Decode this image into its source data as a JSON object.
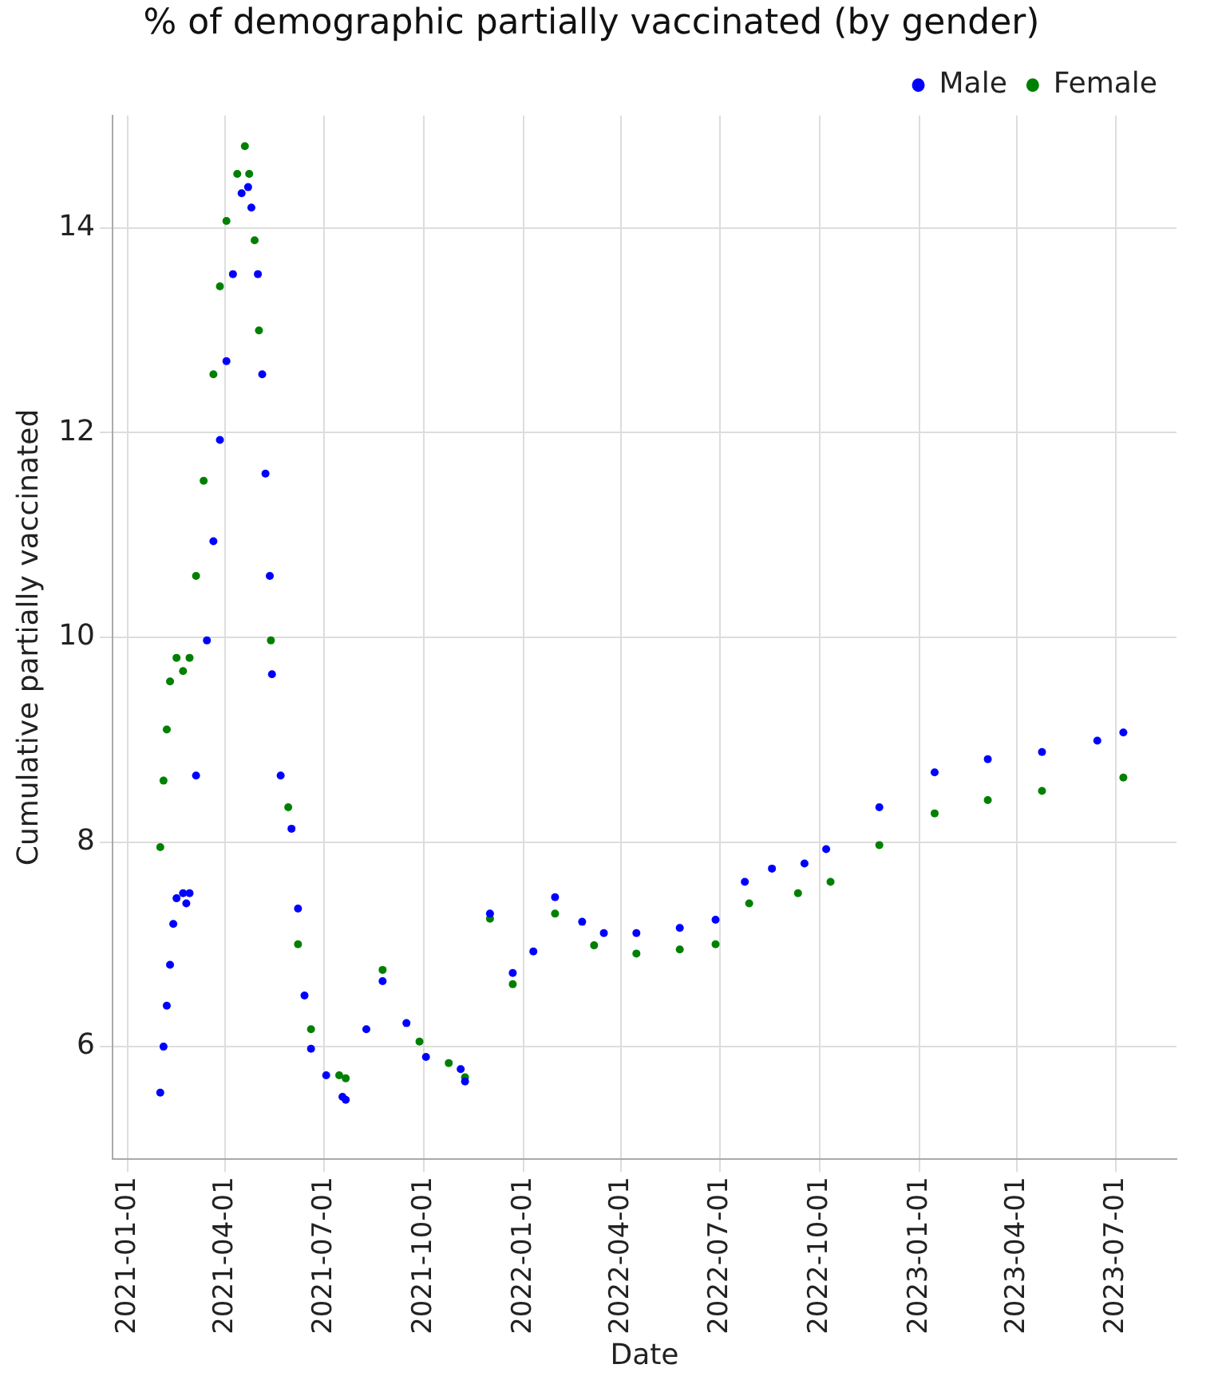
{
  "chart_data": {
    "type": "scatter",
    "title": "% of demographic partially vaccinated (by gender)",
    "xlabel": "Date",
    "ylabel": "Cumulative partially vaccinated",
    "xlim": [
      "2020-12-18",
      "2023-08-26"
    ],
    "xticks": [
      "2021-01-01",
      "2021-04-01",
      "2021-07-01",
      "2021-10-01",
      "2022-01-01",
      "2022-04-01",
      "2022-07-01",
      "2022-10-01",
      "2023-01-01",
      "2023-04-01",
      "2023-07-01"
    ],
    "ylim": [
      4.9,
      15.1
    ],
    "yticks": [
      6,
      8,
      10,
      12,
      14
    ],
    "grid": true,
    "legend": "top right",
    "marker": "circle",
    "series": [
      {
        "name": "Male",
        "color": "#0000ff",
        "x": [
          "2021-01-31",
          "2021-02-03",
          "2021-02-06",
          "2021-02-09",
          "2021-02-12",
          "2021-02-15",
          "2021-02-21",
          "2021-02-24",
          "2021-02-27",
          "2021-03-05",
          "2021-03-15",
          "2021-03-21",
          "2021-03-27",
          "2021-04-02",
          "2021-04-08",
          "2021-04-16",
          "2021-04-22",
          "2021-04-25",
          "2021-05-01",
          "2021-05-05",
          "2021-05-08",
          "2021-05-12",
          "2021-05-14",
          "2021-05-22",
          "2021-06-01",
          "2021-06-07",
          "2021-06-13",
          "2021-06-19",
          "2021-07-03",
          "2021-07-18",
          "2021-07-21",
          "2021-08-09",
          "2021-08-24",
          "2021-09-15",
          "2021-10-03",
          "2021-11-04",
          "2021-11-08",
          "2021-12-01",
          "2021-12-22",
          "2022-01-10",
          "2022-01-30",
          "2022-02-24",
          "2022-03-16",
          "2022-04-15",
          "2022-05-25",
          "2022-06-27",
          "2022-07-24",
          "2022-08-18",
          "2022-09-17",
          "2022-10-07",
          "2022-11-25",
          "2023-01-15",
          "2023-03-05",
          "2023-04-24",
          "2023-06-14",
          "2023-07-08"
        ],
        "values": [
          5.55,
          6.0,
          6.4,
          6.8,
          7.2,
          7.45,
          7.5,
          7.4,
          7.5,
          8.65,
          9.97,
          10.94,
          11.93,
          12.7,
          13.55,
          14.34,
          14.4,
          14.2,
          13.55,
          12.57,
          11.6,
          10.6,
          9.64,
          8.65,
          8.13,
          7.35,
          6.5,
          5.98,
          5.72,
          5.51,
          5.48,
          6.17,
          6.64,
          6.23,
          5.9,
          5.78,
          5.66,
          7.3,
          6.72,
          6.93,
          7.46,
          7.22,
          7.11,
          7.11,
          7.16,
          7.24,
          7.61,
          7.74,
          7.79,
          7.93,
          8.34,
          8.68,
          8.81,
          8.88,
          8.99,
          9.07
        ]
      },
      {
        "name": "Female",
        "color": "#008000",
        "x": [
          "2021-01-31",
          "2021-02-03",
          "2021-02-06",
          "2021-02-09",
          "2021-02-15",
          "2021-02-21",
          "2021-02-27",
          "2021-03-05",
          "2021-03-12",
          "2021-03-21",
          "2021-03-27",
          "2021-04-02",
          "2021-04-12",
          "2021-04-19",
          "2021-04-23",
          "2021-04-28",
          "2021-05-02",
          "2021-05-13",
          "2021-05-29",
          "2021-06-07",
          "2021-06-19",
          "2021-07-15",
          "2021-07-21",
          "2021-08-24",
          "2021-09-27",
          "2021-10-24",
          "2021-11-08",
          "2021-12-01",
          "2021-12-22",
          "2022-01-30",
          "2022-03-07",
          "2022-04-15",
          "2022-05-25",
          "2022-06-27",
          "2022-07-28",
          "2022-09-11",
          "2022-10-11",
          "2022-11-25",
          "2023-01-15",
          "2023-03-05",
          "2023-04-24",
          "2023-07-08"
        ],
        "values": [
          7.95,
          8.6,
          9.1,
          9.57,
          9.8,
          9.67,
          9.8,
          10.6,
          11.53,
          12.57,
          13.43,
          14.07,
          14.53,
          14.8,
          14.53,
          13.88,
          13.0,
          9.97,
          8.34,
          7.0,
          6.17,
          5.72,
          5.69,
          6.75,
          6.05,
          5.84,
          5.7,
          7.25,
          6.61,
          7.3,
          6.99,
          6.91,
          6.95,
          7.0,
          7.4,
          7.5,
          7.61,
          7.97,
          8.28,
          8.41,
          8.5,
          8.63
        ]
      }
    ]
  }
}
